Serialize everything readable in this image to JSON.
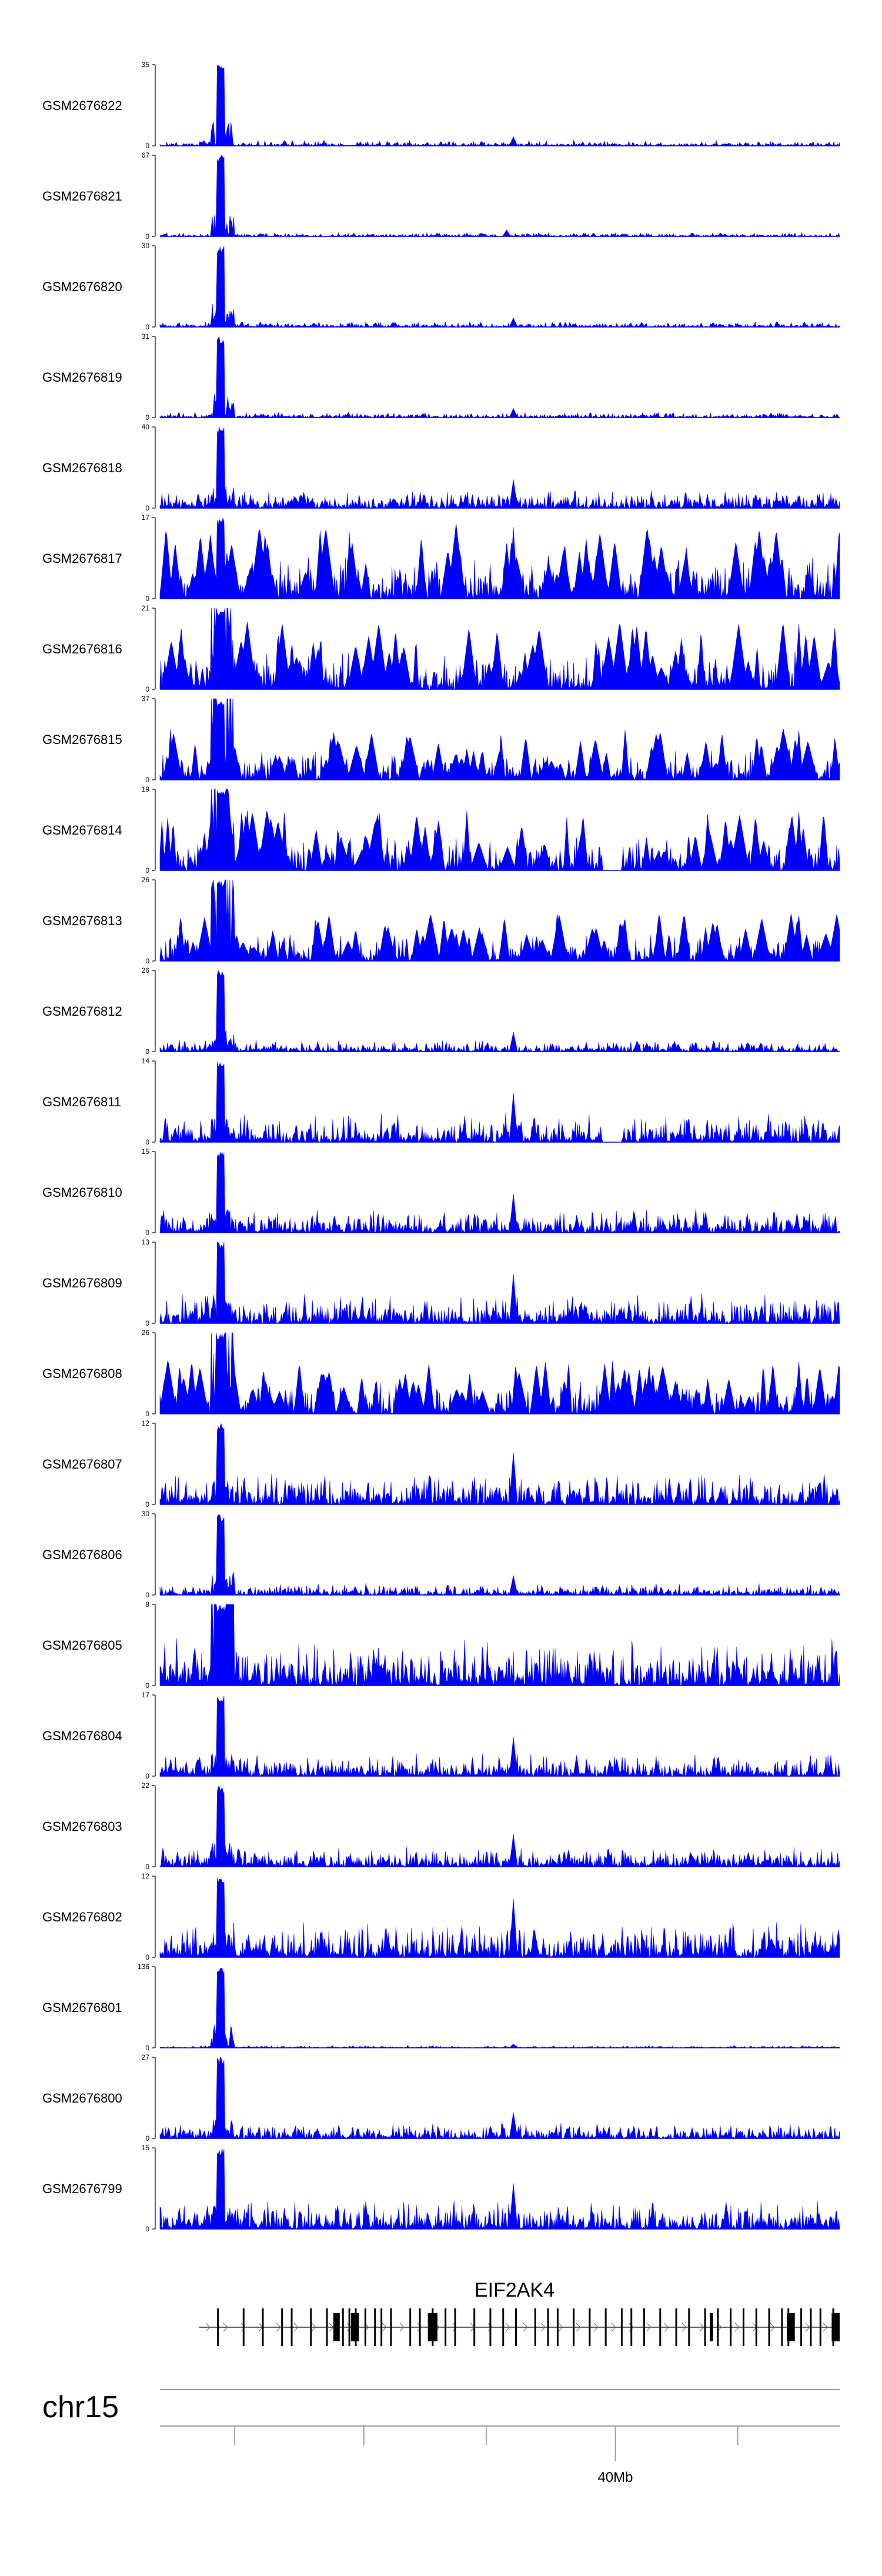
{
  "colors": {
    "signal": "#0000ff",
    "axis": "#000000",
    "gene": "#000000",
    "ideogram": "#9a9a9a"
  },
  "chart_data": {
    "type": "area",
    "chromosome": "chr15",
    "gene": {
      "name": "EIF2AK4",
      "strand": "+",
      "exons": [
        0.06,
        0.14,
        0.2,
        0.26,
        0.29,
        0.35,
        0.4,
        0.45,
        0.47,
        0.49,
        0.52,
        0.55,
        0.57,
        0.6,
        0.66,
        0.69,
        0.73,
        0.77,
        0.8,
        0.86,
        0.91,
        0.95,
        0.99,
        1.05,
        1.09,
        1.12,
        1.17,
        1.22,
        1.27,
        1.32,
        1.35,
        1.39,
        1.44,
        1.49,
        1.53,
        1.58,
        1.62,
        1.66,
        1.7,
        1.74,
        1.78,
        1.82,
        1.84,
        1.88,
        1.91,
        1.94,
        1.98
      ],
      "big_exons": [
        [
          0.42,
          0.44
        ],
        [
          0.475,
          0.5
        ],
        [
          0.715,
          0.745
        ],
        [
          1.595,
          1.605
        ],
        [
          1.835,
          1.86
        ],
        [
          1.975,
          2.0
        ]
      ]
    },
    "x_axis": {
      "ticks": [
        {
          "pos": 0.11,
          "label": ""
        },
        {
          "pos": 0.3,
          "label": ""
        },
        {
          "pos": 0.48,
          "label": ""
        },
        {
          "pos": 0.67,
          "label": "40Mb"
        },
        {
          "pos": 0.85,
          "label": ""
        }
      ]
    },
    "series": [
      {
        "name": "GSM2676822",
        "max": 35,
        "bg": 0.07,
        "peak": 0.1,
        "noise": 1,
        "gap": 0
      },
      {
        "name": "GSM2676821",
        "max": 67,
        "bg": 0.05,
        "peak": 0.09,
        "noise": 1,
        "gap": 0
      },
      {
        "name": "GSM2676820",
        "max": 30,
        "bg": 0.07,
        "peak": 0.1,
        "noise": 1,
        "gap": 0
      },
      {
        "name": "GSM2676819",
        "max": 31,
        "bg": 0.07,
        "peak": 0.1,
        "noise": 1,
        "gap": 0
      },
      {
        "name": "GSM2676818",
        "max": 40,
        "bg": 0.22,
        "peak": 0.1,
        "noise": 2,
        "gap": 0
      },
      {
        "name": "GSM2676817",
        "max": 17,
        "bg": 0.55,
        "peak": 0.1,
        "noise": 3,
        "gap": 0
      },
      {
        "name": "GSM2676816",
        "max": 21,
        "bg": 0.5,
        "peak": 0.52,
        "noise": 3,
        "gap": 0
      },
      {
        "name": "GSM2676815",
        "max": 37,
        "bg": 0.38,
        "peak": 0.52,
        "noise": 3,
        "gap": 0
      },
      {
        "name": "GSM2676814",
        "max": 19,
        "bg": 0.45,
        "peak": 0.52,
        "noise": 3,
        "gap": 1
      },
      {
        "name": "GSM2676813",
        "max": 26,
        "bg": 0.35,
        "peak": 0.52,
        "noise": 3,
        "gap": 0
      },
      {
        "name": "GSM2676812",
        "max": 26,
        "bg": 0.15,
        "peak": 0.1,
        "noise": 1,
        "gap": 0
      },
      {
        "name": "GSM2676811",
        "max": 14,
        "bg": 0.38,
        "peak": 0.1,
        "noise": 1,
        "gap": 1
      },
      {
        "name": "GSM2676810",
        "max": 15,
        "bg": 0.3,
        "peak": 0.1,
        "noise": 1,
        "gap": 0
      },
      {
        "name": "GSM2676809",
        "max": 13,
        "bg": 0.38,
        "peak": 0.1,
        "noise": 1,
        "gap": 0
      },
      {
        "name": "GSM2676808",
        "max": 26,
        "bg": 0.4,
        "peak": 0.52,
        "noise": 3,
        "gap": 0
      },
      {
        "name": "GSM2676807",
        "max": 12,
        "bg": 0.4,
        "peak": 0.1,
        "noise": 1,
        "gap": 0
      },
      {
        "name": "GSM2676806",
        "max": 30,
        "bg": 0.15,
        "peak": 0.1,
        "noise": 1,
        "gap": 0
      },
      {
        "name": "GSM2676805",
        "max": 8,
        "bg": 0.6,
        "peak": 0.8,
        "noise": 1,
        "gap": 0
      },
      {
        "name": "GSM2676804",
        "max": 17,
        "bg": 0.3,
        "peak": 0.1,
        "noise": 1,
        "gap": 0
      },
      {
        "name": "GSM2676803",
        "max": 22,
        "bg": 0.25,
        "peak": 0.1,
        "noise": 1,
        "gap": 0
      },
      {
        "name": "GSM2676802",
        "max": 12,
        "bg": 0.45,
        "peak": 0.1,
        "noise": 1,
        "gap": 0
      },
      {
        "name": "GSM2676801",
        "max": 136,
        "bg": 0.03,
        "peak": 0.1,
        "noise": 1,
        "gap": 0
      },
      {
        "name": "GSM2676800",
        "max": 27,
        "bg": 0.2,
        "peak": 0.1,
        "noise": 1,
        "gap": 0
      },
      {
        "name": "GSM2676799",
        "max": 15,
        "bg": 0.35,
        "peak": 0.1,
        "noise": 1,
        "gap": 0
      }
    ]
  }
}
